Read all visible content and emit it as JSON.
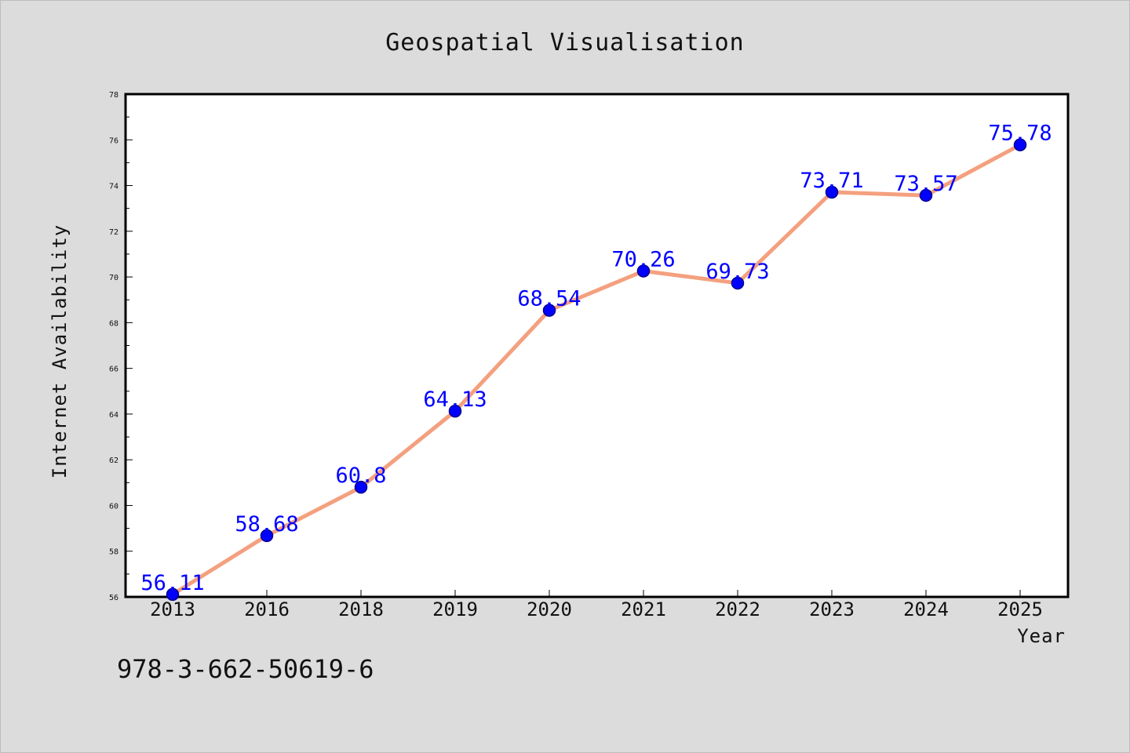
{
  "chart_data": {
    "type": "line",
    "title": "Geospatial Visualisation",
    "xlabel": "Year",
    "ylabel": "Internet Availability",
    "categories": [
      "2013",
      "2016",
      "2018",
      "2019",
      "2020",
      "2021",
      "2022",
      "2023",
      "2024",
      "2025"
    ],
    "series": [
      {
        "values": [
          56.11,
          58.68,
          60.8,
          64.13,
          68.54,
          70.26,
          69.73,
          73.71,
          73.57,
          75.78
        ],
        "labels": [
          "56.11",
          "58.68",
          "60.8",
          "64.13",
          "68.54",
          "70.26",
          "69.73",
          "73.71",
          "73.57",
          "75.78"
        ]
      }
    ],
    "ylim": [
      56,
      78
    ],
    "yticks": [
      "56",
      "58",
      "60",
      "62",
      "64",
      "66",
      "68",
      "70",
      "72",
      "74",
      "76",
      "78"
    ],
    "grid": false,
    "colors": {
      "line": "#f4a07f",
      "marker": "#0000ff",
      "marker_edge": "#00008b",
      "data_label": "#0000ff",
      "background": "#dcdcdc",
      "plot_area": "#ffffff"
    }
  },
  "footer": {
    "isbn": "978-3-662-50619-6"
  }
}
